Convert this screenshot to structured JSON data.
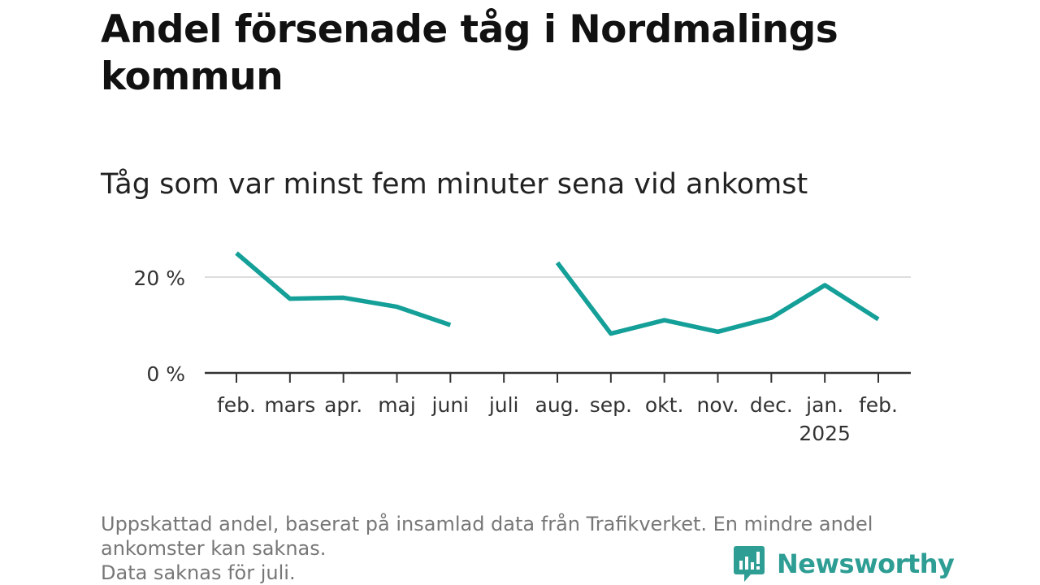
{
  "title": "Andel försenade tåg i Nordmalings kommun",
  "subtitle": "Tåg som var minst fem minuter sena vid ankomst",
  "footnote": {
    "line1": "Uppskattad andel, baserat på insamlad data från Trafikverket. En mindre andel",
    "line2": "ankomster kan saknas.",
    "line3": "Data saknas för juli."
  },
  "brand": {
    "name": "Newsworthy",
    "icon": "bar-chart-speech-bubble-icon",
    "color": "#2e9e95"
  },
  "chart_data": {
    "type": "line",
    "categories": [
      "feb.",
      "mars",
      "apr.",
      "maj",
      "juni",
      "juli",
      "aug.",
      "sep.",
      "okt.",
      "nov.",
      "dec.",
      "jan.",
      "feb."
    ],
    "year_label": {
      "index": 11,
      "text": "2025"
    },
    "series": [
      {
        "values": [
          25,
          15.5,
          15.7,
          13.8,
          10,
          null,
          23,
          8.2,
          11,
          8.6,
          11.5,
          18.3,
          11.2
        ],
        "color": "#14a098"
      }
    ],
    "yticks": [
      {
        "value": 0,
        "label": "0 %"
      },
      {
        "value": 20,
        "label": "20 %"
      }
    ],
    "ylim": [
      0,
      27
    ],
    "grid": true,
    "xlabel": "",
    "ylabel": ""
  }
}
